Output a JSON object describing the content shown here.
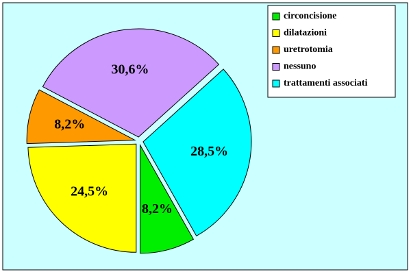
{
  "chart_data": {
    "type": "pie",
    "categories": [
      "circoncisione",
      "dilatazioni",
      "uretrotomia",
      "nessuno",
      "trattamenti associati"
    ],
    "values": [
      8.2,
      24.5,
      8.2,
      30.6,
      28.5
    ],
    "value_labels": [
      "8,2%",
      "24,5%",
      "8,2%",
      "30,6%",
      "28,5%"
    ],
    "colors": [
      "#00ee00",
      "#ffff00",
      "#ff9900",
      "#cc99ff",
      "#00ffff"
    ],
    "legend": "top-right"
  }
}
